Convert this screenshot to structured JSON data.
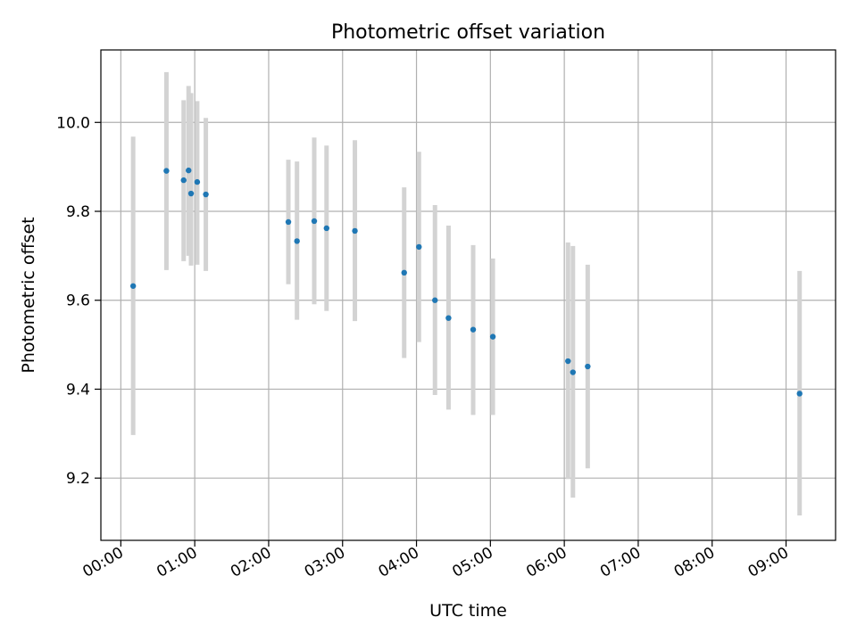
{
  "chart_data": {
    "type": "scatter",
    "title": "Photometric offset variation",
    "xlabel": "UTC time",
    "ylabel": "Photometric offset",
    "x_range_hours": [
      -0.27,
      9.67
    ],
    "ylim": [
      9.06,
      10.163
    ],
    "x_ticks": [
      "00:00",
      "01:00",
      "02:00",
      "03:00",
      "04:00",
      "05:00",
      "06:00",
      "07:00",
      "08:00",
      "09:00"
    ],
    "y_ticks": [
      "9.2",
      "9.4",
      "9.6",
      "9.8",
      "10.0"
    ],
    "grid": true,
    "errorbar_color": "#d3d3d3",
    "point_color": "#1f77b4",
    "points": [
      {
        "time": "00:10",
        "y": 9.632,
        "ymin": 9.297,
        "ymax": 9.968
      },
      {
        "time": "00:37",
        "y": 9.891,
        "ymin": 9.668,
        "ymax": 10.113
      },
      {
        "time": "00:51",
        "y": 9.87,
        "ymin": 9.688,
        "ymax": 10.05
      },
      {
        "time": "00:55",
        "y": 9.892,
        "ymin": 9.7,
        "ymax": 10.082
      },
      {
        "time": "00:57",
        "y": 9.84,
        "ymin": 9.678,
        "ymax": 10.066
      },
      {
        "time": "01:02",
        "y": 9.866,
        "ymin": 9.68,
        "ymax": 10.048
      },
      {
        "time": "01:09",
        "y": 9.838,
        "ymin": 9.666,
        "ymax": 10.01
      },
      {
        "time": "02:16",
        "y": 9.776,
        "ymin": 9.636,
        "ymax": 9.916
      },
      {
        "time": "02:23",
        "y": 9.733,
        "ymin": 9.556,
        "ymax": 9.912
      },
      {
        "time": "02:37",
        "y": 9.778,
        "ymin": 9.591,
        "ymax": 9.966
      },
      {
        "time": "02:47",
        "y": 9.762,
        "ymin": 9.576,
        "ymax": 9.948
      },
      {
        "time": "03:10",
        "y": 9.756,
        "ymin": 9.553,
        "ymax": 9.96
      },
      {
        "time": "03:50",
        "y": 9.662,
        "ymin": 9.47,
        "ymax": 9.854
      },
      {
        "time": "04:02",
        "y": 9.72,
        "ymin": 9.506,
        "ymax": 9.934
      },
      {
        "time": "04:15",
        "y": 9.6,
        "ymin": 9.387,
        "ymax": 9.814
      },
      {
        "time": "04:26",
        "y": 9.56,
        "ymin": 9.354,
        "ymax": 9.768
      },
      {
        "time": "04:46",
        "y": 9.534,
        "ymin": 9.342,
        "ymax": 9.724
      },
      {
        "time": "05:02",
        "y": 9.518,
        "ymin": 9.342,
        "ymax": 9.694
      },
      {
        "time": "06:03",
        "y": 9.463,
        "ymin": 9.198,
        "ymax": 9.73
      },
      {
        "time": "06:07",
        "y": 9.438,
        "ymin": 9.156,
        "ymax": 9.722
      },
      {
        "time": "06:19",
        "y": 9.451,
        "ymin": 9.222,
        "ymax": 9.68
      },
      {
        "time": "09:11",
        "y": 9.39,
        "ymin": 9.116,
        "ymax": 9.666
      }
    ]
  }
}
